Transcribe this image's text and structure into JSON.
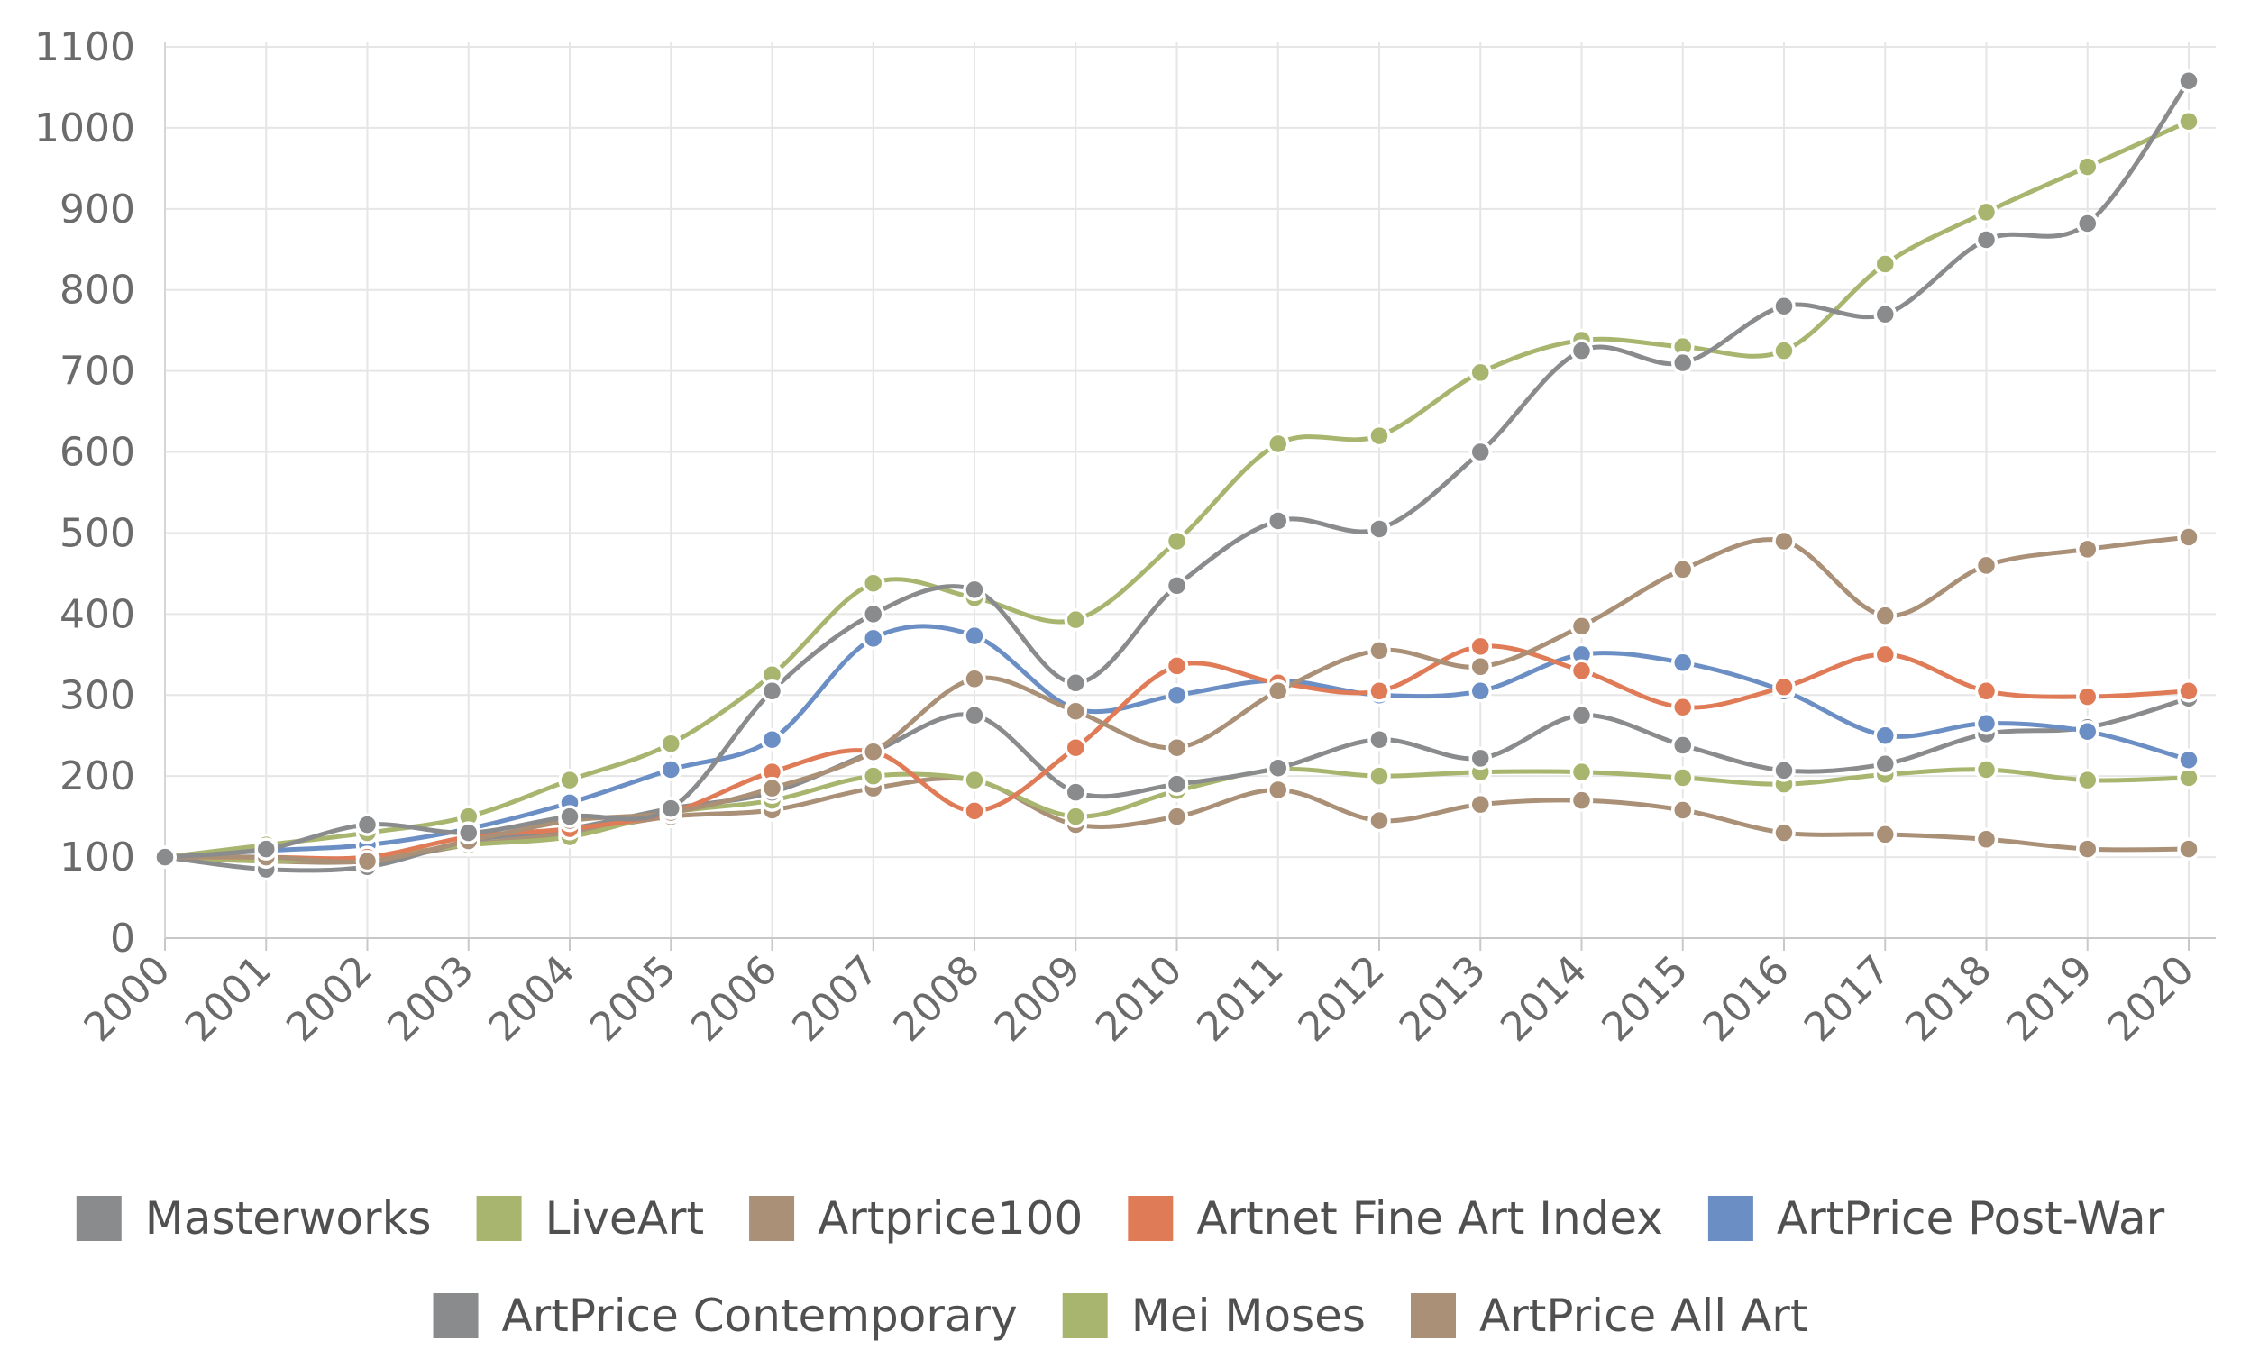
{
  "chart_data": {
    "type": "line",
    "title": "",
    "xlabel": "",
    "ylabel": "",
    "ylim": [
      0,
      1100
    ],
    "grid": true,
    "legend_position": "bottom",
    "yticks": [
      "0",
      "100",
      "200",
      "300",
      "400",
      "500",
      "600",
      "700",
      "800",
      "900",
      "1000",
      "1100"
    ],
    "ytick_values": [
      0,
      100,
      200,
      300,
      400,
      500,
      600,
      700,
      800,
      900,
      1000,
      1100
    ],
    "categories": [
      "2000",
      "2001",
      "2002",
      "2003",
      "2004",
      "2005",
      "2006",
      "2007",
      "2008",
      "2009",
      "2010",
      "2011",
      "2012",
      "2013",
      "2014",
      "2015",
      "2016",
      "2017",
      "2018",
      "2019",
      "2020"
    ],
    "series": [
      {
        "name": "Masterworks",
        "color": "#8a8b8d",
        "values": [
          100,
          110,
          140,
          130,
          150,
          160,
          305,
          400,
          430,
          315,
          435,
          515,
          505,
          600,
          725,
          710,
          780,
          770,
          862,
          882,
          1058
        ]
      },
      {
        "name": "LiveArt",
        "color": "#a8b56e",
        "values": [
          100,
          115,
          130,
          150,
          195,
          240,
          325,
          438,
          420,
          393,
          490,
          610,
          620,
          698,
          738,
          730,
          725,
          832,
          896,
          952,
          1008
        ]
      },
      {
        "name": "Artprice100",
        "color": "#a99077",
        "values": [
          100,
          100,
          95,
          120,
          145,
          155,
          185,
          230,
          320,
          280,
          235,
          305,
          355,
          335,
          385,
          455,
          490,
          398,
          460,
          480,
          495
        ]
      },
      {
        "name": "Artnet Fine Art Index",
        "color": "#e07b58",
        "values": [
          100,
          100,
          100,
          125,
          135,
          155,
          205,
          230,
          157,
          235,
          336,
          315,
          305,
          360,
          330,
          285,
          310,
          350,
          305,
          298,
          305
        ]
      },
      {
        "name": "ArtPrice Post-War",
        "color": "#6b8fc4",
        "values": [
          100,
          108,
          115,
          135,
          167,
          208,
          245,
          370,
          373,
          283,
          300,
          318,
          300,
          305,
          350,
          340,
          305,
          250,
          265,
          255,
          220
        ]
      },
      {
        "name": "ArtPrice Contemporary",
        "color": "#8a8b8d",
        "values": [
          100,
          85,
          88,
          120,
          135,
          160,
          180,
          230,
          275,
          180,
          190,
          210,
          245,
          222,
          275,
          238,
          207,
          215,
          252,
          260,
          296
        ]
      },
      {
        "name": "Mei Moses",
        "color": "#a8b56e",
        "values": [
          100,
          95,
          100,
          115,
          125,
          155,
          170,
          200,
          195,
          150,
          182,
          208,
          200,
          205,
          205,
          198,
          190,
          202,
          208,
          195,
          198
        ]
      },
      {
        "name": "ArtPrice All Art",
        "color": "#a99077",
        "values": [
          100,
          95,
          95,
          115,
          130,
          150,
          158,
          185,
          195,
          140,
          150,
          183,
          145,
          165,
          170,
          158,
          130,
          128,
          122,
          110,
          110
        ]
      }
    ]
  }
}
